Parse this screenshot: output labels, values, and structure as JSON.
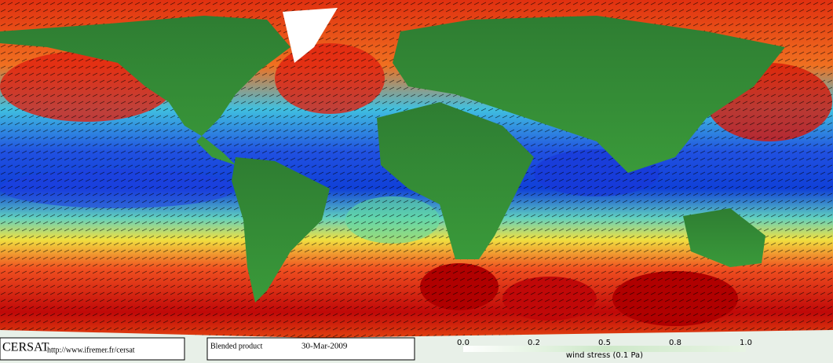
{
  "footer": {
    "brand": "CERSAT",
    "url": "http://www.ifremer.fr/cersat",
    "product": "Blended product",
    "date": "30-Mar-2009"
  },
  "colorbar": {
    "ticks": [
      "0.0",
      "0.2",
      "0.5",
      "0.8",
      "1.0"
    ],
    "label": "wind stress (0.1 Pa)"
  }
}
